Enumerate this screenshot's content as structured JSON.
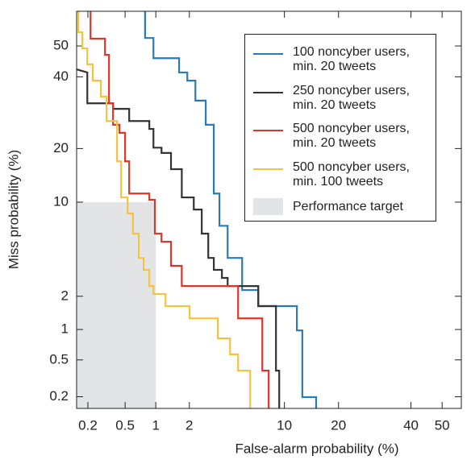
{
  "chart_data": {
    "type": "det",
    "xlabel": "False-alarm probability (%)",
    "ylabel": "Miss probability (%)",
    "xscale": "probit",
    "yscale": "probit",
    "xlim": [
      0.149,
      56.2
    ],
    "ylim": [
      0.147,
      61.2
    ],
    "xticks": [
      0.2,
      0.5,
      1,
      2,
      10,
      20,
      40,
      50
    ],
    "yticks": [
      0.2,
      0.5,
      1,
      2,
      10,
      20,
      40,
      50
    ],
    "target": {
      "label": "Performance target",
      "color": "#e3e4e6",
      "x_max": 1,
      "y_max": 10
    },
    "series": [
      {
        "name": "100 noncyber users, min. 20 tweets",
        "color": "#2a7ab5",
        "x": [
          0.79,
          0.79,
          0.95,
          0.95,
          1.63,
          1.63,
          1.92,
          1.92,
          2.25,
          2.25,
          2.74,
          2.74,
          3.18,
          3.18,
          3.52,
          3.52,
          4.07,
          4.07,
          5.21,
          5.21,
          6.76,
          6.76,
          11.9,
          11.9,
          12.8,
          12.8,
          15.3,
          15.3
        ],
        "values": [
          61.2,
          52.6,
          52.6,
          46,
          46,
          41.4,
          41.4,
          38.8,
          38.8,
          32.7,
          32.7,
          25.9,
          25.9,
          11.3,
          11.3,
          7.0,
          7.0,
          4.1,
          4.1,
          2.26,
          2.26,
          1.64,
          1.64,
          0.98,
          0.98,
          0.198,
          0.198,
          0.147
        ]
      },
      {
        "name": "250 noncyber users, min. 20 tweets",
        "color": "#333333",
        "x": [
          0.149,
          0.197,
          0.197,
          0.375,
          0.375,
          0.55,
          0.55,
          0.868,
          0.868,
          0.95,
          0.95,
          1.13,
          1.13,
          1.38,
          1.38,
          1.72,
          1.72,
          2.18,
          2.18,
          2.54,
          2.54,
          2.87,
          2.87,
          3.18,
          3.18,
          3.68,
          3.68,
          4.07,
          4.07,
          6.76,
          6.76,
          8.85,
          8.85,
          9.28,
          9.28
        ],
        "values": [
          42.4,
          41.4,
          31.9,
          31.9,
          30.3,
          30.3,
          26.9,
          26.9,
          24.8,
          24.8,
          20.2,
          20.2,
          19.0,
          19.0,
          15.6,
          15.6,
          10.7,
          10.7,
          8.98,
          8.98,
          6.18,
          6.18,
          4.1,
          4.1,
          3.31,
          3.31,
          2.85,
          2.85,
          2.44,
          2.44,
          1.64,
          1.64,
          0.386,
          0.386,
          0.147
        ]
      },
      {
        "name": "500 noncyber users, min. 20 tweets",
        "color": "#d8372a",
        "x": [
          0.214,
          0.214,
          0.308,
          0.308,
          0.34,
          0.34,
          0.375,
          0.375,
          0.438,
          0.438,
          0.5,
          0.5,
          0.55,
          0.55,
          0.868,
          0.868,
          0.98,
          0.98,
          1.13,
          1.13,
          1.38,
          1.38,
          1.72,
          1.72,
          4.87,
          4.87,
          7.2,
          7.2,
          7.94,
          7.94
        ],
        "values": [
          61.2,
          52.4,
          52.4,
          47.1,
          47.1,
          31.9,
          31.9,
          25.9,
          25.9,
          23.8,
          23.8,
          17.2,
          17.2,
          11.3,
          11.3,
          10.35,
          10.35,
          6.18,
          6.18,
          5.41,
          5.41,
          3.56,
          3.56,
          2.44,
          2.44,
          1.27,
          1.27,
          0.386,
          0.386,
          0.147
        ]
      },
      {
        "name": "500 noncyber users, min. 100 tweets",
        "color": "#f5c242",
        "x": [
          0.156,
          0.156,
          0.173,
          0.173,
          0.197,
          0.197,
          0.227,
          0.227,
          0.278,
          0.278,
          0.32,
          0.32,
          0.413,
          0.413,
          0.455,
          0.455,
          0.53,
          0.53,
          0.6,
          0.6,
          0.685,
          0.685,
          0.765,
          0.765,
          0.868,
          0.868,
          0.95,
          0.95,
          1.23,
          1.23,
          2.01,
          2.01,
          3.42,
          3.42,
          4.24,
          4.24,
          4.87,
          4.87,
          5.94,
          5.94
        ],
        "values": [
          61.2,
          54.5,
          54.5,
          49.2,
          49.2,
          44.0,
          44.0,
          38.8,
          38.8,
          33.9,
          33.9,
          26.9,
          26.9,
          17.2,
          17.2,
          10.7,
          10.7,
          8.46,
          8.46,
          6.18,
          6.18,
          4.1,
          4.1,
          3.31,
          3.31,
          2.44,
          2.44,
          2.09,
          2.09,
          1.64,
          1.64,
          1.27,
          1.27,
          0.82,
          0.82,
          0.57,
          0.57,
          0.386,
          0.386,
          0.147
        ]
      }
    ]
  }
}
